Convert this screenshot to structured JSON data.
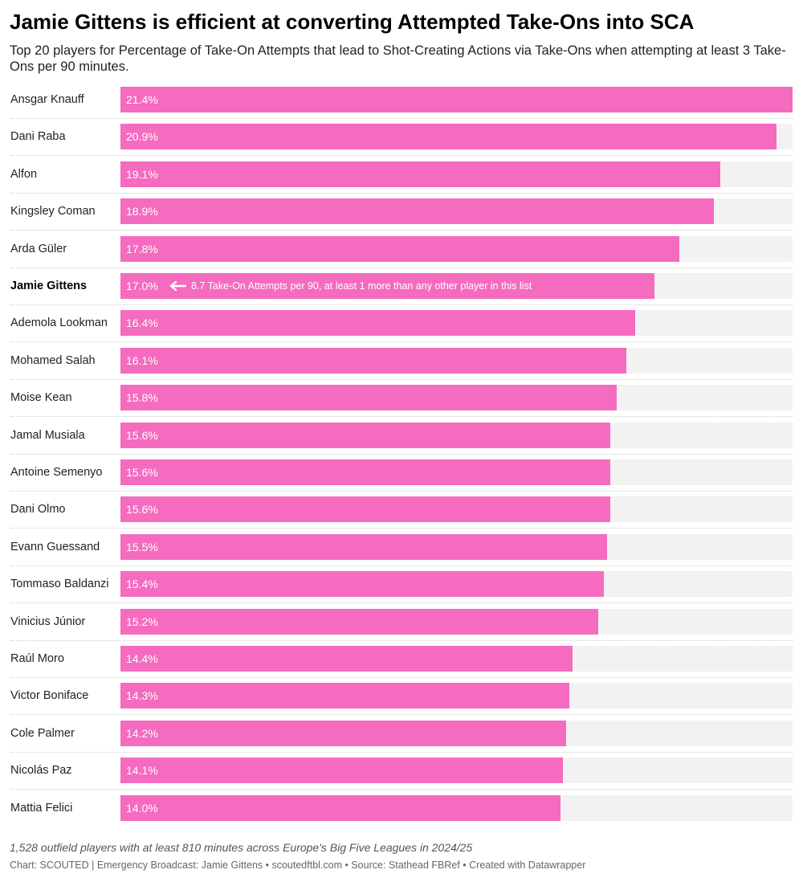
{
  "chart_data": {
    "type": "bar",
    "orientation": "horizontal",
    "title": "Jamie Gittens is efficient at converting Attempted Take-Ons into SCA",
    "subtitle": "Top 20 players for Percentage of Take-On Attempts that lead to Shot-Creating Actions via Take-Ons when attempting at least 3 Take-Ons per 90 minutes.",
    "categories": [
      "Ansgar Knauff",
      "Dani Raba",
      "Alfon",
      "Kingsley Coman",
      "Arda Güler",
      "Jamie Gittens",
      "Ademola Lookman",
      "Mohamed Salah",
      "Moise Kean",
      "Jamal Musiala",
      "Antoine Semenyo",
      "Dani Olmo",
      "Evann Guessand",
      "Tommaso Baldanzi",
      "Vinicius Júnior",
      "Raúl Moro",
      "Victor Boniface",
      "Cole Palmer",
      "Nicolás Paz",
      "Mattia Felici"
    ],
    "values": [
      21.4,
      20.9,
      19.1,
      18.9,
      17.8,
      17.0,
      16.4,
      16.1,
      15.8,
      15.6,
      15.6,
      15.6,
      15.5,
      15.4,
      15.2,
      14.4,
      14.3,
      14.2,
      14.1,
      14.0
    ],
    "value_labels": [
      "21.4%",
      "20.9%",
      "19.1%",
      "18.9%",
      "17.8%",
      "17.0%",
      "16.4%",
      "16.1%",
      "15.8%",
      "15.6%",
      "15.6%",
      "15.6%",
      "15.5%",
      "15.4%",
      "15.2%",
      "14.4%",
      "14.3%",
      "14.2%",
      "14.1%",
      "14.0%"
    ],
    "xlim": [
      0,
      21.4
    ],
    "highlight": "Jamie Gittens",
    "annotation": {
      "category": "Jamie Gittens",
      "text": "8.7 Take-On Attempts per 90, at least 1 more than any other player in this list"
    },
    "colors": {
      "bar": "#f56bbf",
      "track": "#f2f2f2"
    },
    "grid": false,
    "note": "1,528 outfield players with at least 810 minutes across Europe's Big Five Leagues in 2024/25",
    "credit": "Chart: SCOUTED | Emergency Broadcast: Jamie Gittens • scoutedftbl.com • Source: Stathead FBRef • Created with Datawrapper"
  }
}
